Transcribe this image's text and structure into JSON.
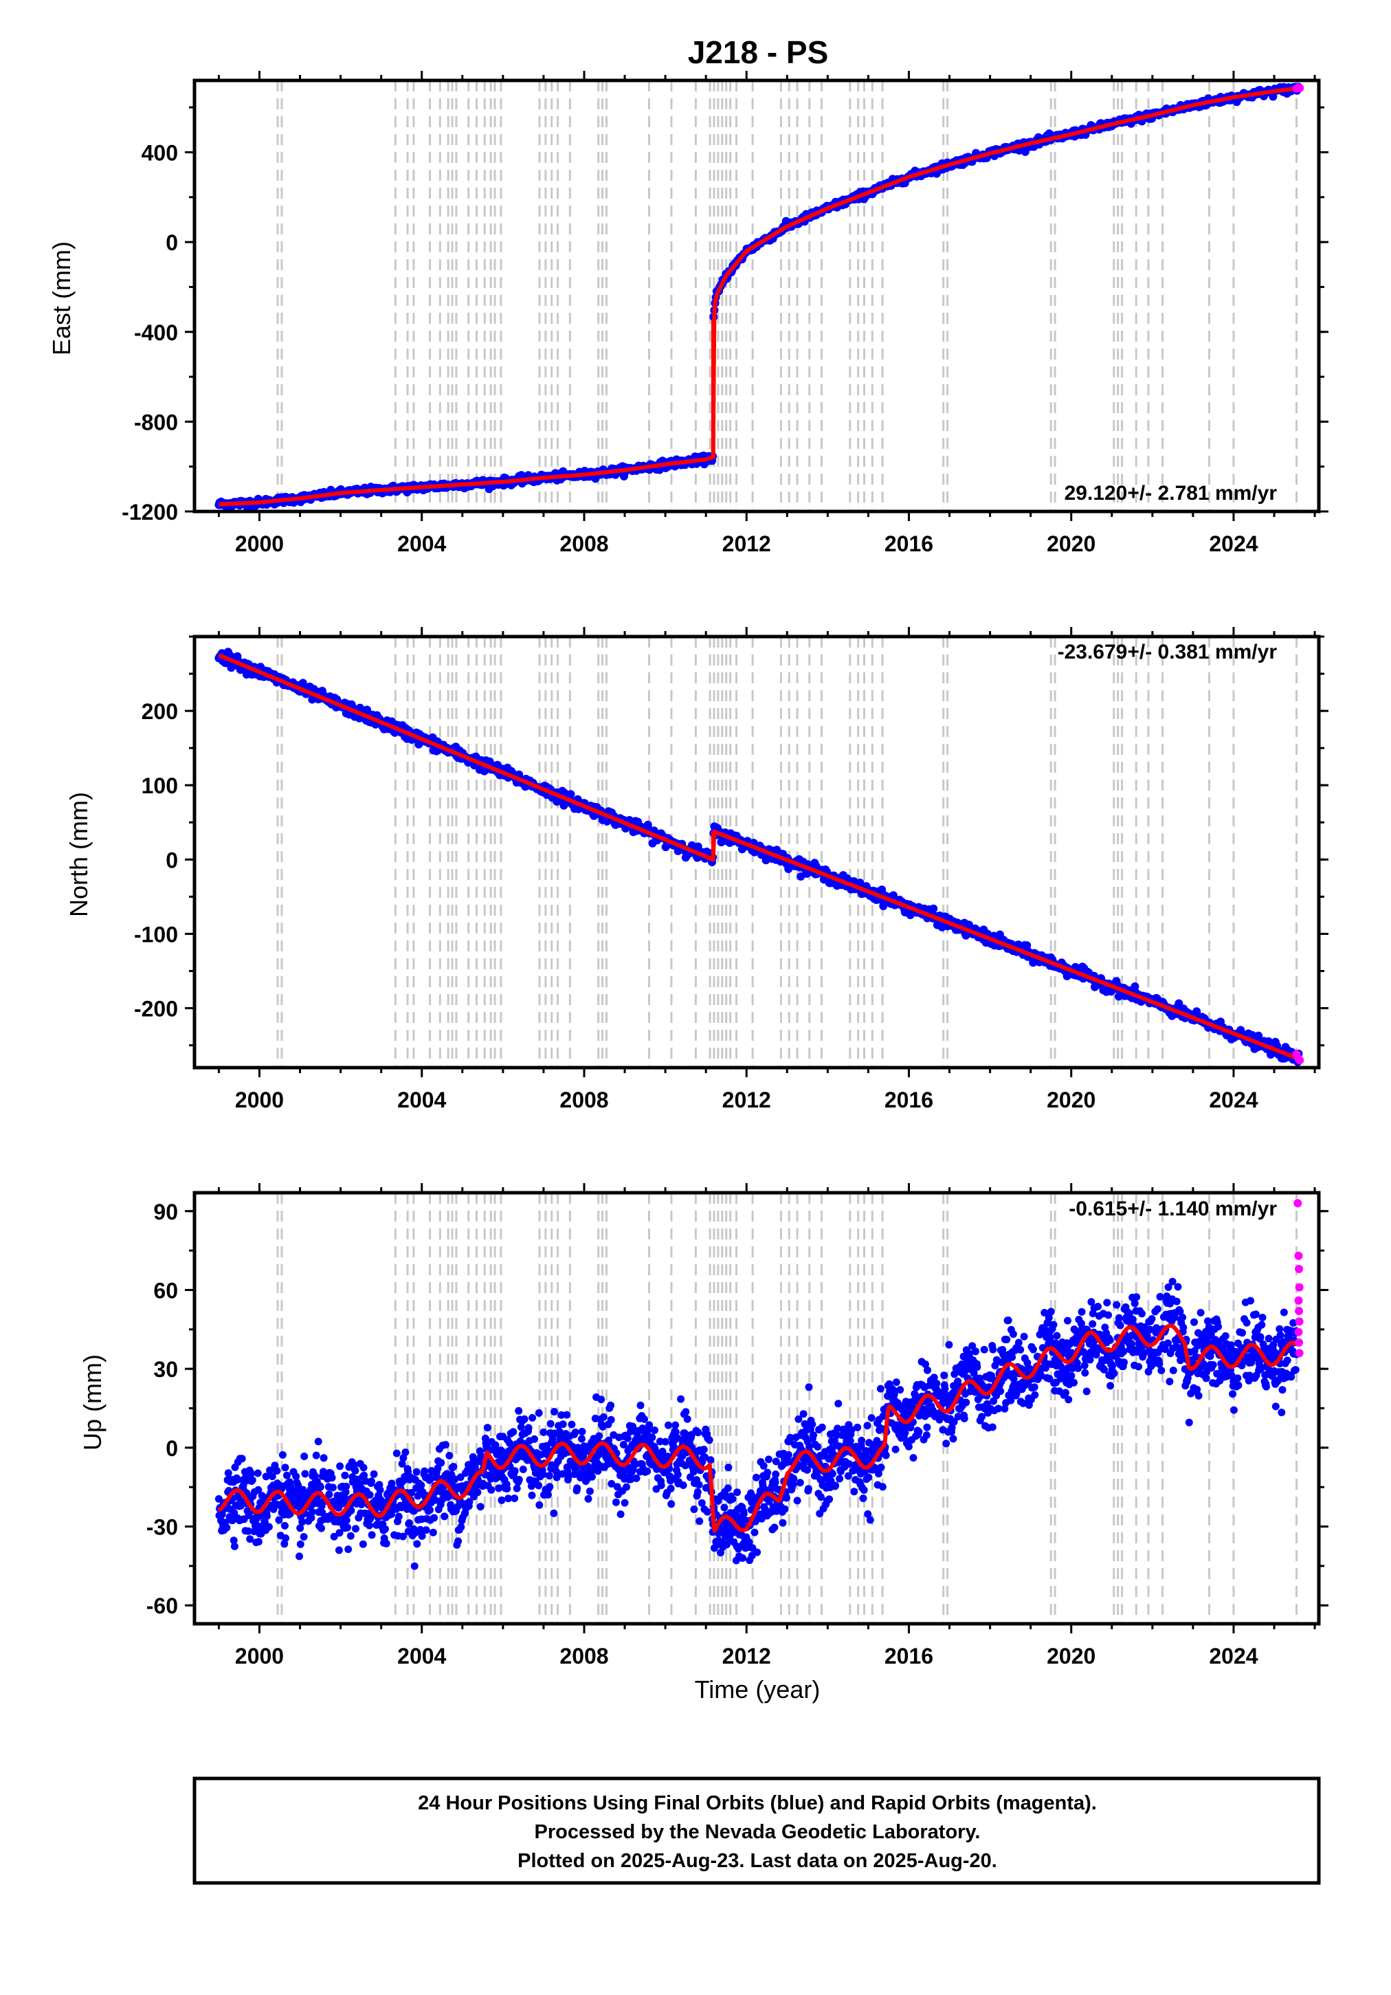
{
  "title": "J218 - PS",
  "xlabel": "Time (year)",
  "footer": {
    "line1": "24 Hour Positions Using Final Orbits (blue) and Rapid Orbits (magenta).",
    "line2": "Processed by the Nevada Geodetic Laboratory.",
    "line3": "Plotted on 2025-Aug-23. Last data on 2025-Aug-20."
  },
  "colors": {
    "final_orbits": "#0000ff",
    "rapid_orbits": "#ff00ff",
    "model": "#ff0000",
    "steps": "#c8c8c8"
  },
  "steps": [
    2000.45,
    2000.55,
    2003.35,
    2003.65,
    2003.8,
    2004.2,
    2004.45,
    2004.65,
    2004.75,
    2004.85,
    2005.15,
    2005.35,
    2005.55,
    2005.7,
    2005.8,
    2005.95,
    2006.9,
    2007.05,
    2007.2,
    2007.35,
    2007.65,
    2008.35,
    2008.45,
    2008.55,
    2009.6,
    2010.15,
    2010.75,
    2011.1,
    2011.2,
    2011.3,
    2011.4,
    2011.5,
    2011.6,
    2011.75,
    2012.15,
    2012.85,
    2013.05,
    2013.25,
    2013.55,
    2013.85,
    2014.55,
    2014.75,
    2014.9,
    2015.1,
    2015.35,
    2016.85,
    2016.95,
    2019.5,
    2019.6,
    2021.05,
    2021.15,
    2021.25,
    2021.6,
    2021.9,
    2022.25,
    2023.4,
    2024.0,
    2025.55
  ],
  "chart_data": [
    {
      "type": "scatter",
      "name": "east",
      "ylabel": "East (mm)",
      "rate_text": "29.120+/- 2.781 mm/yr",
      "xlim": [
        1998.4,
        2026.1
      ],
      "ylim": [
        -1200,
        720
      ],
      "xticks": [
        2000,
        2004,
        2008,
        2012,
        2016,
        2020,
        2024
      ],
      "yticks": [
        -1200,
        -800,
        -400,
        0,
        400
      ],
      "ytick_labels": [
        "-1200",
        "-800",
        "-400",
        "0",
        "400"
      ],
      "model_points": [
        [
          1999.0,
          -1168
        ],
        [
          2000.0,
          -1160
        ],
        [
          2000.5,
          -1150
        ],
        [
          2001.0,
          -1142
        ],
        [
          2002.0,
          -1118
        ],
        [
          2003.0,
          -1104
        ],
        [
          2004.0,
          -1092
        ],
        [
          2005.0,
          -1080
        ],
        [
          2006.0,
          -1068
        ],
        [
          2007.0,
          -1050
        ],
        [
          2008.0,
          -1036
        ],
        [
          2009.0,
          -1016
        ],
        [
          2010.0,
          -990
        ],
        [
          2011.0,
          -968
        ],
        [
          2011.18,
          -958
        ],
        [
          2011.18,
          -350
        ],
        [
          2011.25,
          -240
        ],
        [
          2011.5,
          -150
        ],
        [
          2012.0,
          -40
        ],
        [
          2013.0,
          70
        ],
        [
          2014.0,
          150
        ],
        [
          2015.0,
          220
        ],
        [
          2016.0,
          290
        ],
        [
          2017.0,
          345
        ],
        [
          2018.0,
          395
        ],
        [
          2019.0,
          440
        ],
        [
          2020.0,
          480
        ],
        [
          2021.0,
          525
        ],
        [
          2022.0,
          565
        ],
        [
          2023.0,
          610
        ],
        [
          2024.0,
          645
        ],
        [
          2025.0,
          672
        ],
        [
          2025.6,
          685
        ]
      ],
      "scatter_spread": 8,
      "rapid_points": [
        [
          2025.55,
          684
        ],
        [
          2025.6,
          688
        ],
        [
          2025.63,
          686
        ]
      ]
    },
    {
      "type": "scatter",
      "name": "north",
      "ylabel": "North (mm)",
      "rate_text": "-23.679+/- 0.381 mm/yr",
      "xlim": [
        1998.4,
        2026.1
      ],
      "ylim": [
        -280,
        300
      ],
      "xticks": [
        2000,
        2004,
        2008,
        2012,
        2016,
        2020,
        2024
      ],
      "yticks": [
        -200,
        -100,
        0,
        100,
        200
      ],
      "ytick_labels": [
        "-200",
        "-100",
        "0",
        "100",
        "200"
      ],
      "model_points": [
        [
          1999.0,
          275
        ],
        [
          2011.18,
          0
        ],
        [
          2011.18,
          38
        ],
        [
          2025.6,
          -268
        ]
      ],
      "scatter_spread": 4,
      "rapid_points": [
        [
          2025.55,
          -262
        ],
        [
          2025.6,
          -268
        ],
        [
          2025.63,
          -270
        ]
      ]
    },
    {
      "type": "scatter",
      "name": "up",
      "ylabel": "Up (mm)",
      "rate_text": "-0.615+/- 1.140 mm/yr",
      "xlim": [
        1998.4,
        2026.1
      ],
      "ylim": [
        -67,
        97
      ],
      "xticks": [
        2000,
        2004,
        2008,
        2012,
        2016,
        2020,
        2024
      ],
      "yticks": [
        -60,
        -30,
        0,
        30,
        60,
        90
      ],
      "ytick_labels": [
        "-60",
        "-30",
        "0",
        "30",
        "60",
        "90"
      ],
      "model_points": [
        [
          1999.0,
          -20
        ],
        [
          2003.0,
          -22
        ],
        [
          2005.5,
          -13
        ],
        [
          2005.6,
          -4
        ],
        [
          2008.0,
          -2
        ],
        [
          2011.1,
          -4
        ],
        [
          2011.2,
          -32
        ],
        [
          2012.0,
          -27
        ],
        [
          2012.8,
          -18
        ],
        [
          2013.0,
          -6
        ],
        [
          2015.4,
          -3
        ],
        [
          2015.5,
          12
        ],
        [
          2017.0,
          18
        ],
        [
          2018.0,
          25
        ],
        [
          2019.5,
          34
        ],
        [
          2020.5,
          40
        ],
        [
          2022.0,
          43
        ],
        [
          2022.8,
          42
        ],
        [
          2022.9,
          34
        ],
        [
          2025.55,
          36
        ]
      ],
      "seasonal_amplitude": 4,
      "scatter_spread": 7,
      "rapid_points": [
        [
          2025.58,
          93
        ],
        [
          2025.6,
          73
        ],
        [
          2025.61,
          68
        ],
        [
          2025.62,
          61
        ],
        [
          2025.6,
          56
        ],
        [
          2025.61,
          52
        ],
        [
          2025.62,
          48
        ],
        [
          2025.6,
          44
        ],
        [
          2025.61,
          40
        ],
        [
          2025.62,
          36
        ]
      ]
    }
  ]
}
